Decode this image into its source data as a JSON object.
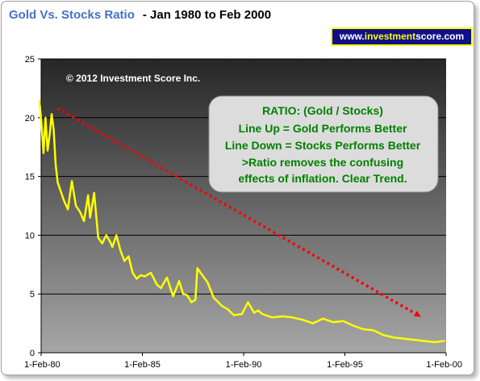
{
  "header": {
    "title_main": "Gold Vs. Stocks Ratio",
    "title_range": "- Jan 1980 to Feb 2000",
    "site_prefix": "www.",
    "site_highlight": "investment",
    "site_suffix": "score.com"
  },
  "copyright": "© 2012 Investment Score Inc.",
  "annotation": {
    "lines": [
      "RATIO: (Gold / Stocks)",
      "Line Up = Gold Performs Better",
      "Line Down = Stocks Performs Better",
      ">Ratio removes the confusing",
      "effects of inflation.  Clear Trend."
    ]
  },
  "colors": {
    "series": "#ffff00",
    "trend": "#ff0000",
    "annotation_text": "#008000",
    "site_bg": "#101088",
    "title_accent": "#4472c4"
  },
  "chart_data": {
    "type": "line",
    "xlim": [
      1980.083,
      2000.083
    ],
    "ylim": [
      0,
      25
    ],
    "yticks": [
      0,
      5,
      10,
      15,
      20,
      25
    ],
    "xtick_values": [
      1980.083,
      1985.083,
      1990.083,
      1995.083,
      2000.083
    ],
    "xtick_labels": [
      "1-Feb-80",
      "1-Feb-85",
      "1-Feb-90",
      "1-Feb-95",
      "1-Feb-00"
    ],
    "grid": "horizontal",
    "series": [
      {
        "x": [
          1980.0,
          1980.1,
          1980.2,
          1980.3,
          1980.4,
          1980.5,
          1980.6,
          1980.7,
          1980.8,
          1980.9,
          1981.0,
          1981.2,
          1981.4,
          1981.6,
          1981.8,
          1982.0,
          1982.2,
          1982.4,
          1982.5,
          1982.7,
          1982.9,
          1983.1,
          1983.3,
          1983.5,
          1983.6,
          1983.8,
          1984.0,
          1984.2,
          1984.4,
          1984.6,
          1984.8,
          1985.0,
          1985.2,
          1985.5,
          1985.8,
          1986.0,
          1986.3,
          1986.6,
          1986.9,
          1987.1,
          1987.3,
          1987.5,
          1987.7,
          1987.8,
          1988.0,
          1988.3,
          1988.6,
          1989.0,
          1989.3,
          1989.6,
          1990.0,
          1990.3,
          1990.6,
          1990.8,
          1991.0,
          1991.5,
          1992.0,
          1992.5,
          1993.0,
          1993.5,
          1994.0,
          1994.5,
          1995.0,
          1995.5,
          1996.0,
          1996.5,
          1997.0,
          1997.5,
          1998.0,
          1998.5,
          1999.0,
          1999.5,
          2000.0
        ],
        "y": [
          21.5,
          19.5,
          17.0,
          20.0,
          17.2,
          18.5,
          20.3,
          19.0,
          16.0,
          14.5,
          14.0,
          13.0,
          12.2,
          14.6,
          12.5,
          12.0,
          11.2,
          13.4,
          11.5,
          13.6,
          9.8,
          9.3,
          10.0,
          9.4,
          9.0,
          10.0,
          8.7,
          7.8,
          8.2,
          6.8,
          6.3,
          6.6,
          6.5,
          6.8,
          5.8,
          5.5,
          6.4,
          4.8,
          6.1,
          5.0,
          4.9,
          4.3,
          4.5,
          7.2,
          6.7,
          6.0,
          4.7,
          4.0,
          3.7,
          3.2,
          3.3,
          4.3,
          3.4,
          3.6,
          3.3,
          3.0,
          3.1,
          3.0,
          2.8,
          2.5,
          2.9,
          2.6,
          2.7,
          2.3,
          2.0,
          1.9,
          1.5,
          1.3,
          1.2,
          1.1,
          1.0,
          0.9,
          1.0
        ]
      }
    ],
    "trend": {
      "x": [
        1980.9,
        1998.7
      ],
      "y": [
        20.8,
        3.2
      ]
    }
  }
}
